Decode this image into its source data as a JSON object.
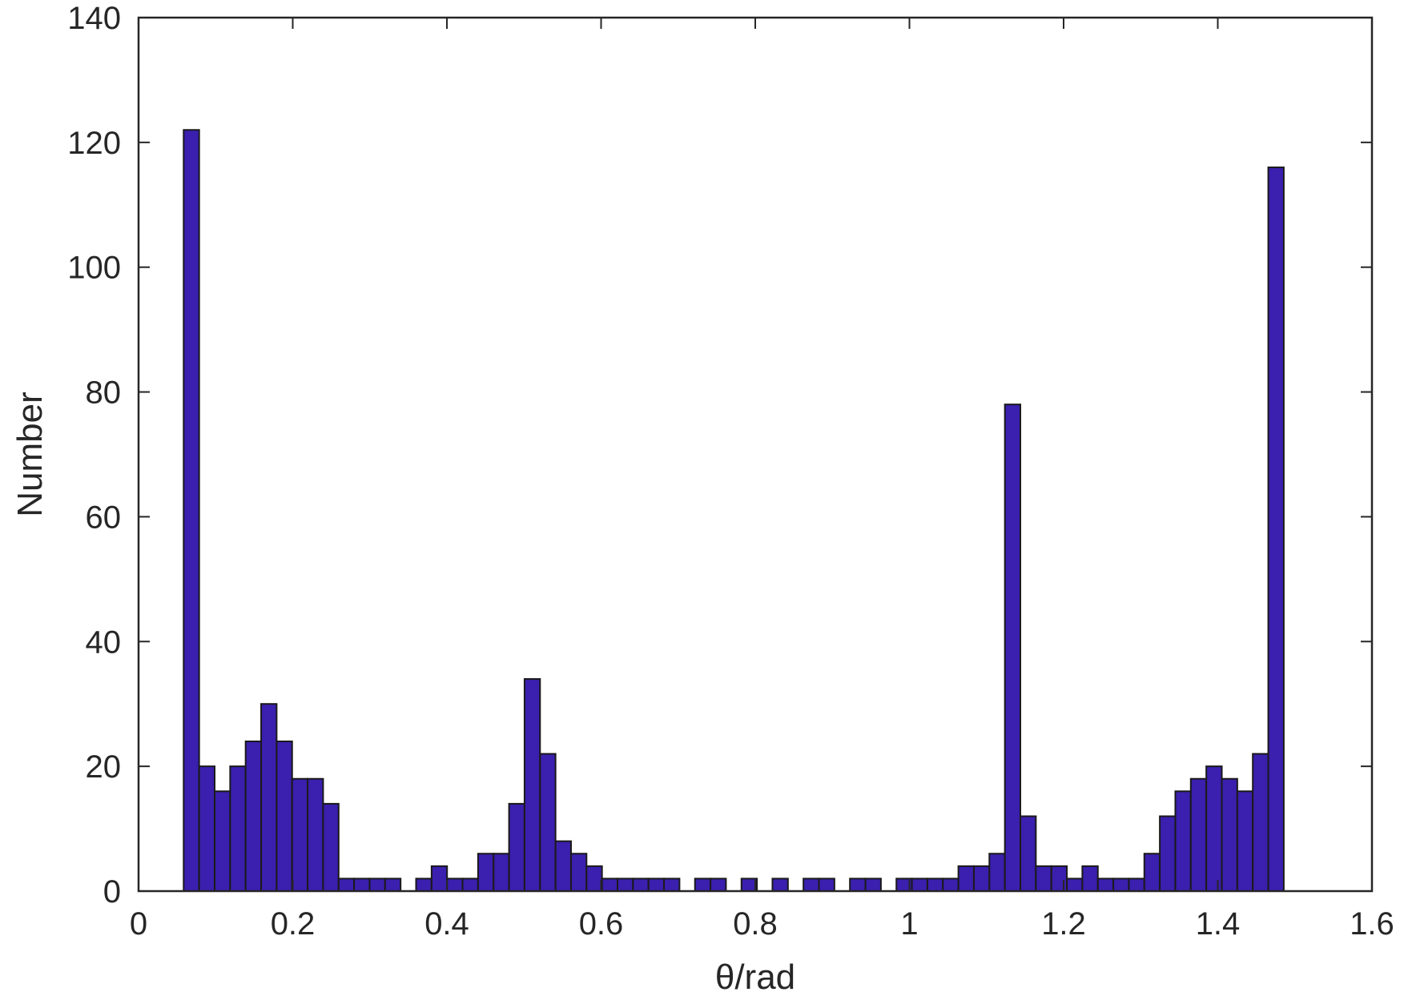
{
  "chart_data": {
    "type": "bar",
    "title": "",
    "xlabel": "θ/rad",
    "ylabel": "Number",
    "xlim": [
      0,
      1.6
    ],
    "ylim": [
      0,
      140
    ],
    "xticks": [
      0,
      0.2,
      0.4,
      0.6,
      0.8,
      1.0,
      1.2,
      1.4,
      1.6
    ],
    "xtick_labels": [
      "0",
      "0.2",
      "0.4",
      "0.6",
      "0.8",
      "1",
      "1.2",
      "1.4",
      "1.6"
    ],
    "yticks": [
      0,
      20,
      40,
      60,
      80,
      100,
      120,
      140
    ],
    "ytick_labels": [
      "0",
      "20",
      "40",
      "60",
      "80",
      "100",
      "120",
      "140"
    ],
    "bin_start": 0.0585,
    "bin_width": 0.0201,
    "values": [
      122,
      20,
      16,
      20,
      24,
      30,
      24,
      18,
      18,
      14,
      2,
      2,
      2,
      2,
      0,
      2,
      4,
      2,
      2,
      6,
      6,
      14,
      34,
      22,
      8,
      6,
      4,
      2,
      2,
      2,
      2,
      2,
      0,
      2,
      2,
      0,
      2,
      0,
      2,
      0,
      2,
      2,
      0,
      2,
      2,
      0,
      2,
      2,
      2,
      2,
      4,
      4,
      6,
      78,
      12,
      4,
      4,
      2,
      4,
      2,
      2,
      2,
      6,
      12,
      16,
      18,
      20,
      18,
      16,
      22,
      116
    ],
    "grid": false,
    "box": true,
    "colors": {
      "bar_fill": "#3b1fae",
      "bar_edge": "#1a1a1a",
      "axis": "#262626",
      "text": "#262626"
    }
  }
}
